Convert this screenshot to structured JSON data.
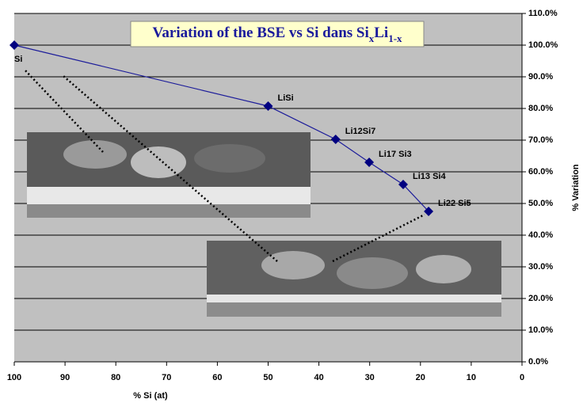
{
  "chart_data": {
    "type": "line",
    "title": [
      "Variation of the  BSE vs Si dans Si",
      "x",
      "Li",
      "1-x"
    ],
    "x_label": "% Si (at)",
    "y_label": "% Variation",
    "x": [
      100,
      50,
      36.7,
      30.1,
      23.4,
      18.4
    ],
    "series": [
      {
        "name": null,
        "color": "#1c1c9a",
        "values": [
          100,
          80.75,
          70.25,
          63,
          56,
          47.5
        ]
      }
    ],
    "point_labels": [
      "Si",
      "LiSi",
      "Li12Si7",
      "Li17 Si3",
      "Li13 Si4",
      "Li22 Si5"
    ],
    "xlim": [
      100,
      0
    ],
    "xticks": [
      100,
      90,
      80,
      70,
      60,
      50,
      40,
      30,
      20,
      10,
      0
    ],
    "ylim": [
      0,
      110
    ],
    "yticks": [
      {
        "value": 0,
        "label": "0.0%"
      },
      {
        "value": 10,
        "label": "10.0%"
      },
      {
        "value": 20,
        "label": "20.0%"
      },
      {
        "value": 30,
        "label": "30.0%"
      },
      {
        "value": 40,
        "label": "40.0%"
      },
      {
        "value": 50,
        "label": "50.0%"
      },
      {
        "value": 60,
        "label": "60.0%"
      },
      {
        "value": 70,
        "label": "70.0%"
      },
      {
        "value": 80,
        "label": "80.0%"
      },
      {
        "value": 90,
        "label": "90.0%"
      },
      {
        "value": 100,
        "label": "100.0%"
      },
      {
        "value": 110,
        "label": "110.0%"
      }
    ],
    "grid": true,
    "y_axis_side": "right"
  }
}
